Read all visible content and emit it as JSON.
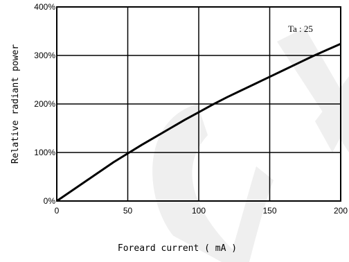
{
  "chart_data": {
    "type": "line",
    "title": "",
    "xlabel": "Foreard current ( mA )",
    "ylabel": "Relative radiant power",
    "xlim": [
      0,
      200
    ],
    "ylim": [
      0,
      400
    ],
    "x_ticks": [
      "0",
      "50",
      "100",
      "150",
      "200"
    ],
    "y_ticks": [
      "0%",
      "100%",
      "200%",
      "300%",
      "400%"
    ],
    "grid": true,
    "annotation": "Ta : 25",
    "watermark": "CGX",
    "watermark_color": "#efefef",
    "series": [
      {
        "x": [
          0,
          10,
          20,
          30,
          40,
          50,
          60,
          70,
          80,
          90,
          100,
          110,
          120,
          130,
          140,
          150,
          160,
          170,
          180,
          190,
          200
        ],
        "values": [
          0,
          20,
          40,
          60,
          80,
          98,
          116,
          133,
          150,
          167,
          183,
          199,
          214,
          228,
          242,
          256,
          270,
          284,
          298,
          311,
          324
        ]
      }
    ]
  }
}
